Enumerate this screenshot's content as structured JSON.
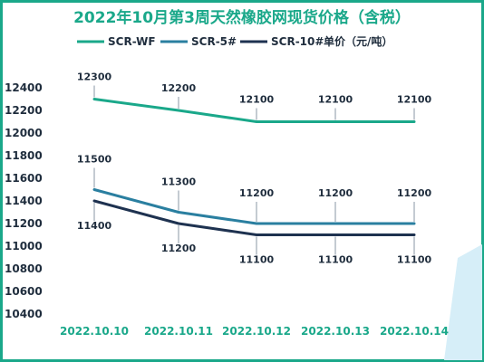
{
  "chart_data": {
    "type": "line",
    "title": "2022年10月第3周天然橡胶网现货价格（含税）",
    "unit_label": "单价（元/吨）",
    "categories": [
      "2022.10.10",
      "2022.10.11",
      "2022.10.12",
      "2022.10.13",
      "2022.10.14"
    ],
    "ylim": [
      10400,
      12400
    ],
    "yticks": [
      10400,
      10600,
      10800,
      11000,
      11200,
      11400,
      11600,
      11800,
      12000,
      12200,
      12400
    ],
    "grid": false,
    "legend_position": "top",
    "series": [
      {
        "name": "SCR-WF",
        "values": [
          12300,
          12200,
          12100,
          12100,
          12100
        ],
        "color": "#1aa88a"
      },
      {
        "name": "SCR-5#",
        "values": [
          11500,
          11300,
          11200,
          11200,
          11200
        ],
        "color": "#2a7fa0"
      },
      {
        "name": "SCR-10#",
        "values": [
          11400,
          11200,
          11100,
          11100,
          11100
        ],
        "color": "#1e3250"
      }
    ]
  },
  "colors": {
    "frame": "#1aa88a",
    "accent_shape": "#cfe9f5"
  }
}
